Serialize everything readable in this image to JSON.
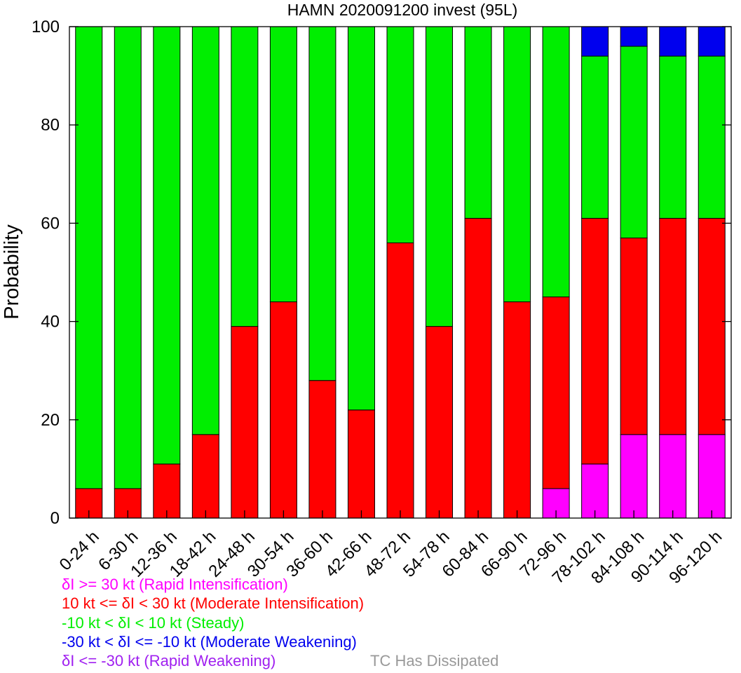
{
  "chart_data": {
    "type": "bar",
    "stacked": true,
    "title": "HAMN 2020091200 invest (95L)",
    "ylabel": "Probability",
    "xlabel": "",
    "ylim": [
      0,
      100
    ],
    "yticks": [
      0,
      20,
      40,
      60,
      80,
      100
    ],
    "grid": false,
    "categories": [
      "0-24 h",
      "6-30 h",
      "12-36 h",
      "18-42 h",
      "24-48 h",
      "30-54 h",
      "36-60 h",
      "42-66 h",
      "48-72 h",
      "54-78 h",
      "60-84 h",
      "66-90 h",
      "72-96 h",
      "78-102 h",
      "84-108 h",
      "90-114 h",
      "96-120 h"
    ],
    "series": [
      {
        "key": "ri",
        "color": "#ff00ff",
        "values": [
          0,
          0,
          0,
          0,
          0,
          0,
          0,
          0,
          0,
          0,
          0,
          0,
          6,
          11,
          17,
          17,
          17
        ]
      },
      {
        "key": "mi",
        "color": "#ff0000",
        "values": [
          6,
          6,
          11,
          17,
          39,
          44,
          28,
          22,
          56,
          39,
          61,
          44,
          39,
          50,
          40,
          44,
          44
        ]
      },
      {
        "key": "st",
        "color": "#00ee00",
        "values": [
          94,
          94,
          89,
          83,
          61,
          56,
          72,
          78,
          44,
          61,
          39,
          56,
          55,
          33,
          39,
          33,
          33
        ]
      },
      {
        "key": "mw",
        "color": "#0000ee",
        "values": [
          0,
          0,
          0,
          0,
          0,
          0,
          0,
          0,
          0,
          0,
          0,
          0,
          0,
          6,
          4,
          6,
          6
        ]
      }
    ]
  },
  "legend": {
    "items": [
      {
        "text": "δI >= 30 kt (Rapid Intensification)",
        "color": "#ff00ff"
      },
      {
        "text": "10 kt <= δI < 30 kt (Moderate Intensification)",
        "color": "#ff0000"
      },
      {
        "text": "-10 kt < δI < 10 kt (Steady)",
        "color": "#00ee00"
      },
      {
        "text": "-30 kt < δI <= -10 kt (Moderate Weakening)",
        "color": "#0000ee"
      },
      {
        "text": "δI <= -30 kt (Rapid Weakening)",
        "color": "#a020f0"
      }
    ],
    "dissipated": {
      "text": "TC Has Dissipated",
      "color": "#999999"
    }
  }
}
